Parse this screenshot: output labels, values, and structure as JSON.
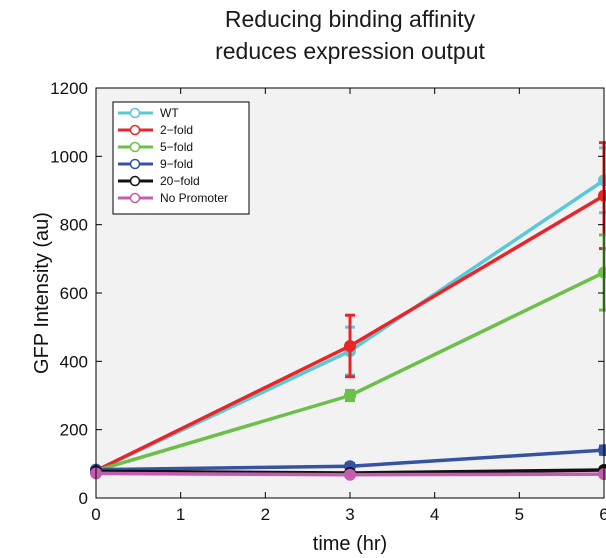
{
  "chart_data": {
    "type": "line",
    "title_lines": [
      "Reducing binding affinity",
      "reduces expression output"
    ],
    "xlabel": "time (hr)",
    "ylabel": "GFP Intensity (au)",
    "xlim": [
      0,
      6
    ],
    "ylim": [
      0,
      1200
    ],
    "xticks": [
      0,
      1,
      2,
      3,
      4,
      5,
      6
    ],
    "yticks": [
      0,
      200,
      400,
      600,
      800,
      1000,
      1200
    ],
    "grid": false,
    "legend_position": "top-left",
    "x": [
      0,
      3,
      6
    ],
    "series": [
      {
        "name": "WT",
        "color": "#5bc8d8",
        "values": [
          80,
          430,
          930
        ],
        "errors": [
          0,
          70,
          95
        ]
      },
      {
        "name": "2−fold",
        "color": "#e8262a",
        "values": [
          80,
          445,
          885
        ],
        "errors": [
          0,
          90,
          155
        ]
      },
      {
        "name": "5−fold",
        "color": "#6cc04a",
        "values": [
          80,
          300,
          660
        ],
        "errors": [
          0,
          15,
          110
        ]
      },
      {
        "name": "9−fold",
        "color": "#3552a3",
        "values": [
          83,
          93,
          140
        ],
        "errors": [
          0,
          8,
          12
        ]
      },
      {
        "name": "20−fold",
        "color": "#111111",
        "values": [
          78,
          73,
          82
        ],
        "errors": [
          0,
          4,
          5
        ]
      },
      {
        "name": "No Promoter",
        "color": "#c45cb0",
        "values": [
          72,
          68,
          70
        ],
        "errors": [
          0,
          3,
          3
        ]
      }
    ]
  }
}
